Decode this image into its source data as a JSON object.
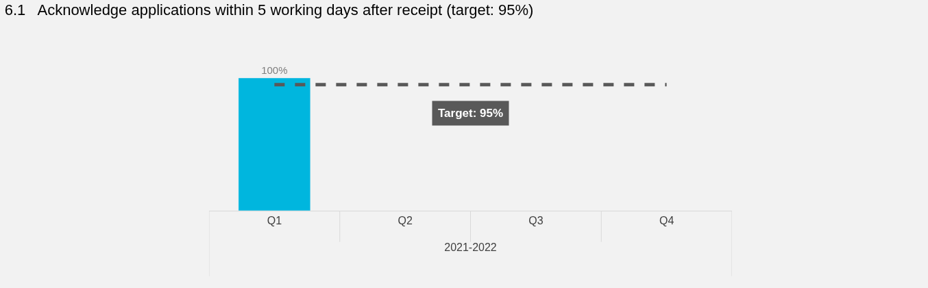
{
  "chart_data": {
    "type": "bar",
    "title": "6.1   Acknowledge applications within 5 working days after receipt (target: 95%)",
    "categories": [
      "Q1",
      "Q2",
      "Q3",
      "Q4"
    ],
    "values": [
      100,
      null,
      null,
      null
    ],
    "color": "#00b6de",
    "value_labels": [
      "100%",
      null,
      null,
      null
    ],
    "xlabel": "2021-2022",
    "ref_lines": [
      {
        "axis": "y",
        "value": 95,
        "label": "Target: 95%",
        "color": "#595959",
        "line_style": "dashed"
      }
    ],
    "legend": false,
    "grid": false
  }
}
